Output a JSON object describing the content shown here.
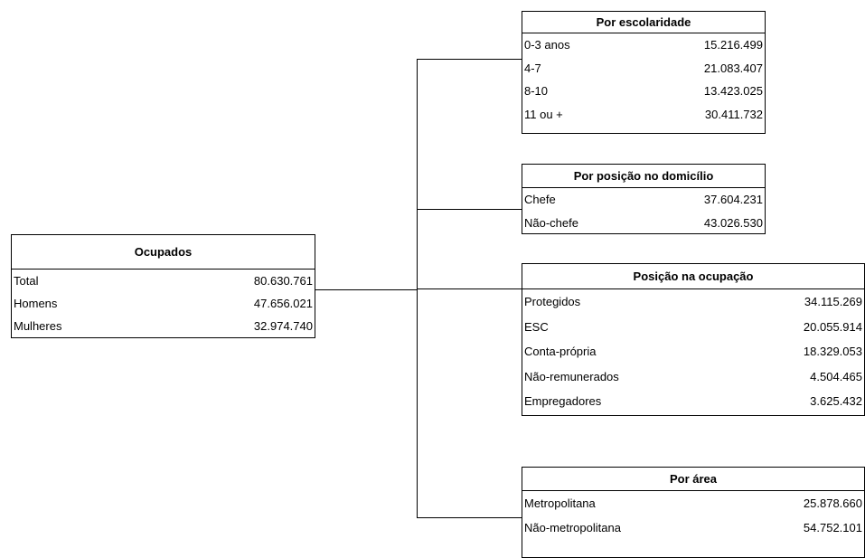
{
  "tables": [
    {
      "title": "Ocupados",
      "rows": [
        [
          "Total",
          "80.630.761"
        ],
        [
          "Homens",
          "47.656.021"
        ],
        [
          "Mulheres",
          "32.974.740"
        ]
      ]
    },
    {
      "title": "Por escolaridade",
      "rows": [
        [
          "0-3 anos",
          "15.216.499"
        ],
        [
          "4-7",
          "21.083.407"
        ],
        [
          "8-10",
          "13.423.025"
        ],
        [
          "11 ou +",
          "30.411.732"
        ]
      ]
    },
    {
      "title": "Por posição no domicílio",
      "rows": [
        [
          "Chefe",
          "37.604.231"
        ],
        [
          "Não-chefe",
          "43.026.530"
        ]
      ]
    },
    {
      "title": "Posição na ocupação",
      "rows": [
        [
          "Protegidos",
          "34.115.269"
        ],
        [
          "ESC",
          "20.055.914"
        ],
        [
          "Conta-própria",
          "18.329.053"
        ],
        [
          "Não-remunerados",
          "4.504.465"
        ],
        [
          "Empregadores",
          "3.625.432"
        ]
      ]
    },
    {
      "title": "Por área",
      "rows": [
        [
          "Metropolitana",
          "25.878.660"
        ],
        [
          "Não-metropolitana",
          "54.752.101"
        ]
      ]
    }
  ]
}
